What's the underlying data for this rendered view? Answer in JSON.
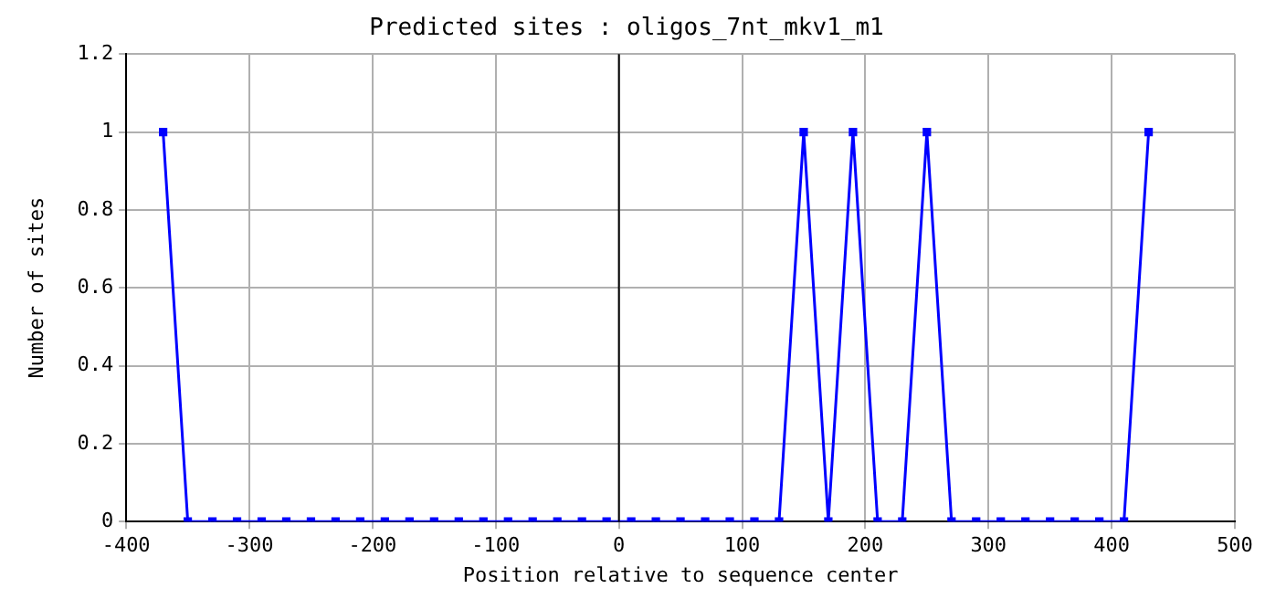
{
  "chart_data": {
    "type": "line",
    "title": "Predicted sites : oligos_7nt_mkv1_m1",
    "xlabel": "Position relative to sequence center",
    "ylabel": "Number of sites",
    "x": [
      -370,
      -350,
      -330,
      -310,
      -290,
      -270,
      -250,
      -230,
      -210,
      -190,
      -170,
      -150,
      -130,
      -110,
      -90,
      -70,
      -50,
      -30,
      -10,
      10,
      30,
      50,
      70,
      90,
      110,
      130,
      150,
      170,
      190,
      210,
      230,
      250,
      270,
      290,
      310,
      330,
      350,
      370,
      390,
      410,
      430
    ],
    "series": [
      {
        "color": "#0000ff",
        "values": [
          1,
          0,
          0,
          0,
          0,
          0,
          0,
          0,
          0,
          0,
          0,
          0,
          0,
          0,
          0,
          0,
          0,
          0,
          0,
          0,
          0,
          0,
          0,
          0,
          0,
          0,
          1,
          0,
          1,
          0,
          0,
          1,
          0,
          0,
          0,
          0,
          0,
          0,
          0,
          0,
          1
        ]
      }
    ],
    "xlim": [
      -400,
      500
    ],
    "xticks": [
      -400,
      -300,
      -200,
      -100,
      0,
      100,
      200,
      300,
      400,
      500
    ],
    "ylim": [
      0,
      1.2
    ],
    "yticks": [
      0,
      0.2,
      0.4,
      0.6,
      0.8,
      1,
      1.2
    ],
    "ref_lines": [
      {
        "axis": "x",
        "value": 0,
        "color": "#000000"
      }
    ],
    "grid": true,
    "legend": false,
    "marker": "square",
    "line_style": "solid"
  }
}
